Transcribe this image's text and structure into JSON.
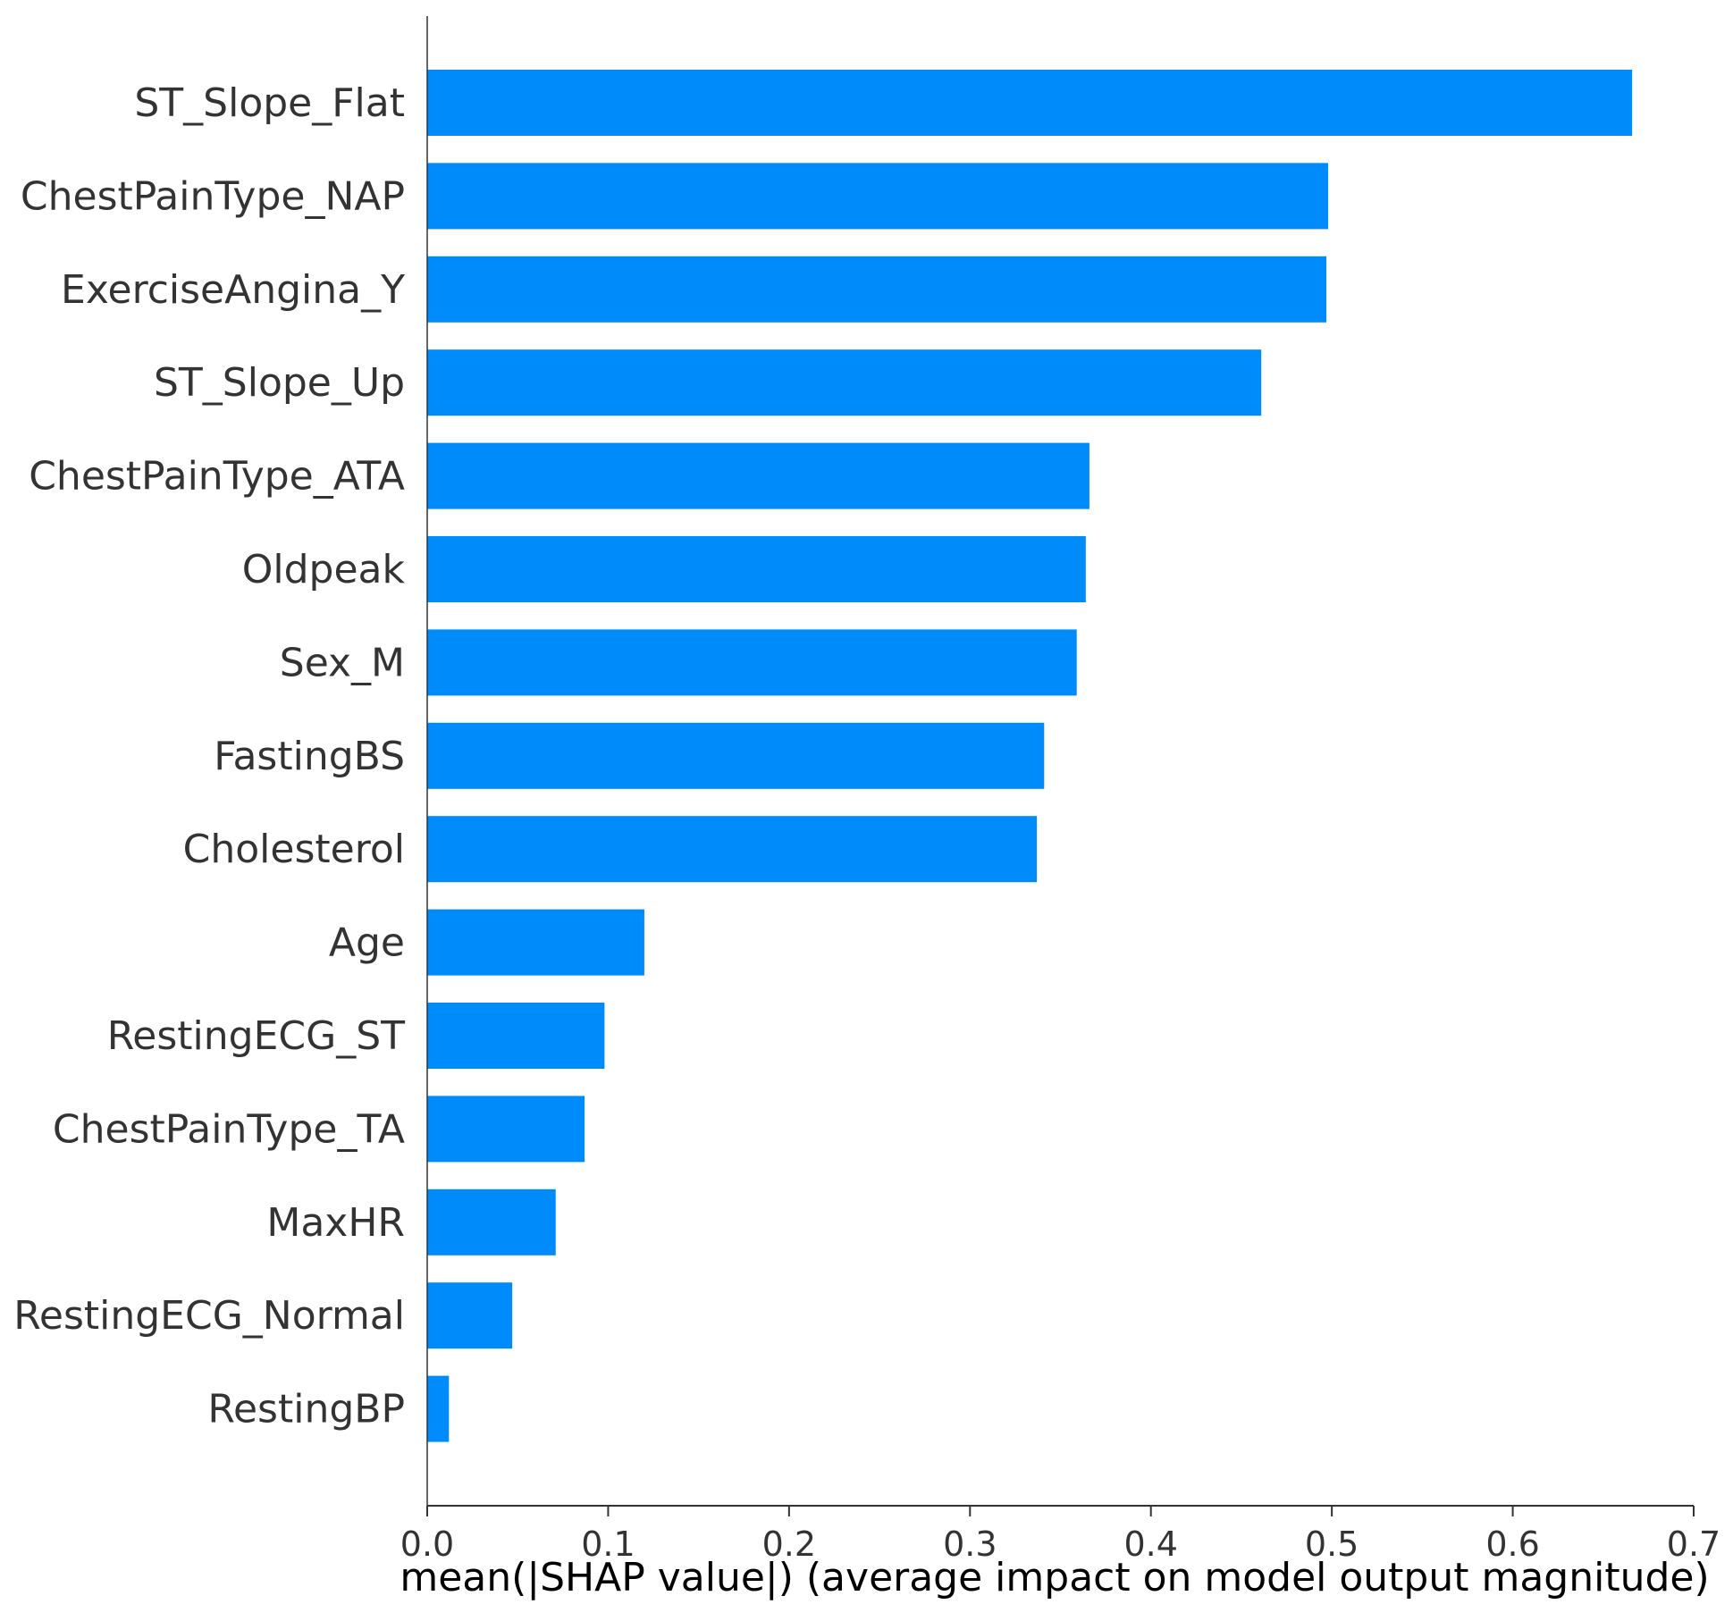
{
  "chart_data": {
    "type": "bar",
    "orientation": "horizontal",
    "categories": [
      "ST_Slope_Flat",
      "ChestPainType_NAP",
      "ExerciseAngina_Y",
      "ST_Slope_Up",
      "ChestPainType_ATA",
      "Oldpeak",
      "Sex_M",
      "FastingBS",
      "Cholesterol",
      "Age",
      "RestingECG_ST",
      "ChestPainType_TA",
      "MaxHR",
      "RestingECG_Normal",
      "RestingBP"
    ],
    "values": [
      0.666,
      0.498,
      0.497,
      0.461,
      0.366,
      0.364,
      0.359,
      0.341,
      0.337,
      0.12,
      0.098,
      0.087,
      0.071,
      0.047,
      0.012
    ],
    "xlabel": "mean(|SHAP value|) (average impact on model output magnitude)",
    "ylabel": "",
    "xlim": [
      0.0,
      0.7
    ],
    "xticks": [
      "0.0",
      "0.1",
      "0.2",
      "0.3",
      "0.4",
      "0.5",
      "0.6",
      "0.7"
    ],
    "grid": false,
    "bar_color": "#008bfb",
    "axis_color": "#333333"
  }
}
